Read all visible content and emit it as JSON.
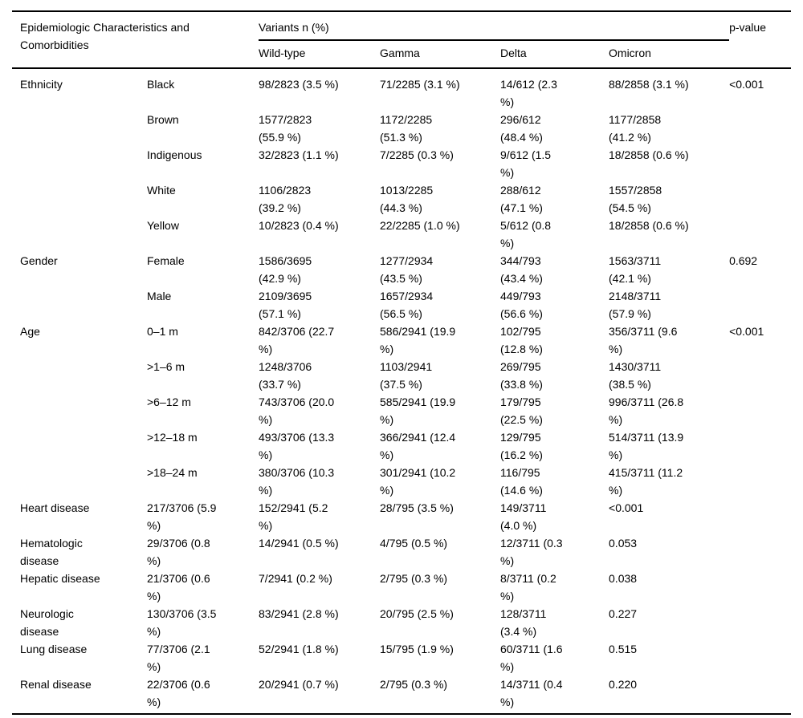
{
  "colors": {
    "text": "#000000",
    "background": "#ffffff",
    "rule": "#000000"
  },
  "table": {
    "header": {
      "row_header": "Epidemiologic Characteristics and Comorbidities",
      "variants_group": "Variants n (%)",
      "variant_cols": [
        "Wild-type",
        "Gamma",
        "Delta",
        "Omicron"
      ],
      "pvalue": "p-value"
    },
    "groups": [
      {
        "category": "Ethnicity",
        "pvalue": "<0.001",
        "rows": [
          {
            "label": "Black",
            "values": [
              "98/2823 (3.5 %)",
              "71/2285 (3.1 %)",
              "14/612 (2.3 %)",
              "88/2858 (3.1 %)"
            ]
          },
          {
            "label": "Brown",
            "values": [
              "1577/2823 (55.9 %)",
              "1172/2285 (51.3 %)",
              "296/612 (48.4 %)",
              "1177/2858 (41.2 %)"
            ]
          },
          {
            "label": "Indigenous",
            "values": [
              "32/2823 (1.1 %)",
              "7/2285 (0.3 %)",
              "9/612 (1.5 %)",
              "18/2858 (0.6 %)"
            ]
          },
          {
            "label": "White",
            "values": [
              "1106/2823 (39.2 %)",
              "1013/2285 (44.3 %)",
              "288/612 (47.1 %)",
              "1557/2858 (54.5 %)"
            ]
          },
          {
            "label": "Yellow",
            "values": [
              "10/2823 (0.4 %)",
              "22/2285 (1.0 %)",
              "5/612 (0.8 %)",
              "18/2858 (0.6 %)"
            ]
          }
        ]
      },
      {
        "category": "Gender",
        "pvalue": "0.692",
        "rows": [
          {
            "label": "Female",
            "values": [
              "1586/3695 (42.9 %)",
              "1277/2934 (43.5 %)",
              "344/793 (43.4 %)",
              "1563/3711 (42.1 %)"
            ]
          },
          {
            "label": "Male",
            "values": [
              "2109/3695 (57.1 %)",
              "1657/2934 (56.5 %)",
              "449/793 (56.6 %)",
              "2148/3711 (57.9 %)"
            ]
          }
        ]
      },
      {
        "category": "Age",
        "pvalue": "<0.001",
        "rows": [
          {
            "label": "0–1 m",
            "values": [
              "842/3706 (22.7 %)",
              "586/2941 (19.9 %)",
              "102/795 (12.8 %)",
              "356/3711 (9.6 %)"
            ]
          },
          {
            "label": ">1–6 m",
            "values": [
              "1248/3706 (33.7 %)",
              "1103/2941 (37.5 %)",
              "269/795 (33.8 %)",
              "1430/3711 (38.5 %)"
            ]
          },
          {
            "label": ">6–12 m",
            "values": [
              "743/3706 (20.0 %)",
              "585/2941 (19.9 %)",
              "179/795 (22.5 %)",
              "996/3711 (26.8 %)"
            ]
          },
          {
            "label": ">12–18 m",
            "values": [
              "493/3706 (13.3 %)",
              "366/2941 (12.4 %)",
              "129/795 (16.2 %)",
              "514/3711 (13.9 %)"
            ]
          },
          {
            "label": ">18–24 m",
            "values": [
              "380/3706 (10.3 %)",
              "301/2941 (10.2 %)",
              "116/795 (14.6 %)",
              "415/3711 (11.2 %)"
            ]
          }
        ]
      }
    ],
    "comorbidity_rows": [
      {
        "label": "Heart disease",
        "values": [
          "217/3706 (5.9 %)",
          "152/2941 (5.2 %)",
          "28/795 (3.5 %)",
          "149/3711 (4.0 %)"
        ],
        "pvalue": "<0.001"
      },
      {
        "label": "Hematologic disease",
        "values": [
          "29/3706 (0.8 %)",
          "14/2941 (0.5 %)",
          "4/795 (0.5 %)",
          "12/3711 (0.3 %)"
        ],
        "pvalue": "0.053"
      },
      {
        "label": "Hepatic disease",
        "values": [
          "21/3706 (0.6 %)",
          "7/2941 (0.2 %)",
          "2/795 (0.3 %)",
          "8/3711 (0.2 %)"
        ],
        "pvalue": "0.038"
      },
      {
        "label": "Neurologic disease",
        "values": [
          "130/3706 (3.5 %)",
          "83/2941 (2.8 %)",
          "20/795 (2.5 %)",
          "128/3711 (3.4 %)"
        ],
        "pvalue": "0.227"
      },
      {
        "label": "Lung disease",
        "values": [
          "77/3706 (2.1 %)",
          "52/2941 (1.8 %)",
          "15/795 (1.9 %)",
          "60/3711 (1.6 %)"
        ],
        "pvalue": "0.515"
      },
      {
        "label": "Renal disease",
        "values": [
          "22/3706 (0.6 %)",
          "20/2941 (0.7 %)",
          "2/795 (0.3 %)",
          "14/3711 (0.4 %)"
        ],
        "pvalue": "0.220"
      }
    ]
  }
}
